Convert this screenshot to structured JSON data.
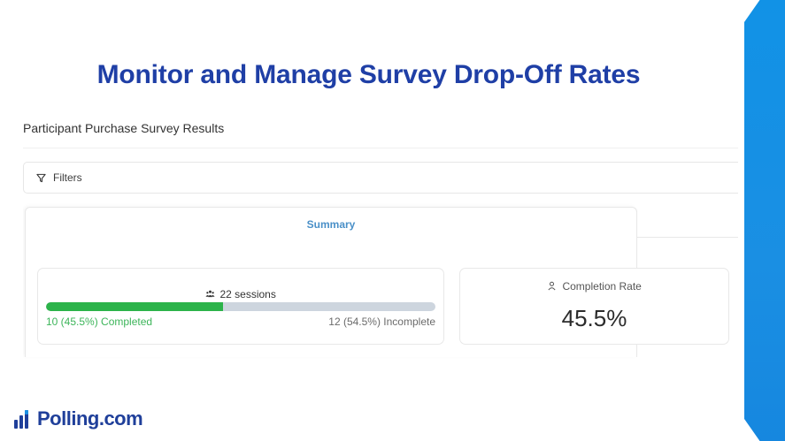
{
  "slide": {
    "title": "Monitor and Manage Survey Drop-Off Rates",
    "accent_color": "#1f3fa6",
    "band_color": "#1a8fe3"
  },
  "survey": {
    "title": "Participant Purchase Survey Results",
    "filters_label": "Filters",
    "tabs": [
      {
        "label": "Summary",
        "active": true
      }
    ]
  },
  "sessions": {
    "icon": "sessions-icon",
    "count_label": "22 sessions",
    "total": 22,
    "completed": 10,
    "completed_fraction": 0.455,
    "completed_label": "10 (45.5%) Completed",
    "incomplete": 12,
    "incomplete_label": "12 (54.5%) Incomplete",
    "completed_color": "#2cb34a",
    "track_color": "#cdd5de"
  },
  "completion": {
    "icon": "user-icon",
    "label": "Completion Rate",
    "value": "45.5%"
  },
  "brand": {
    "logo_icon": "polling-logo-icon",
    "name": "Polling.com"
  }
}
